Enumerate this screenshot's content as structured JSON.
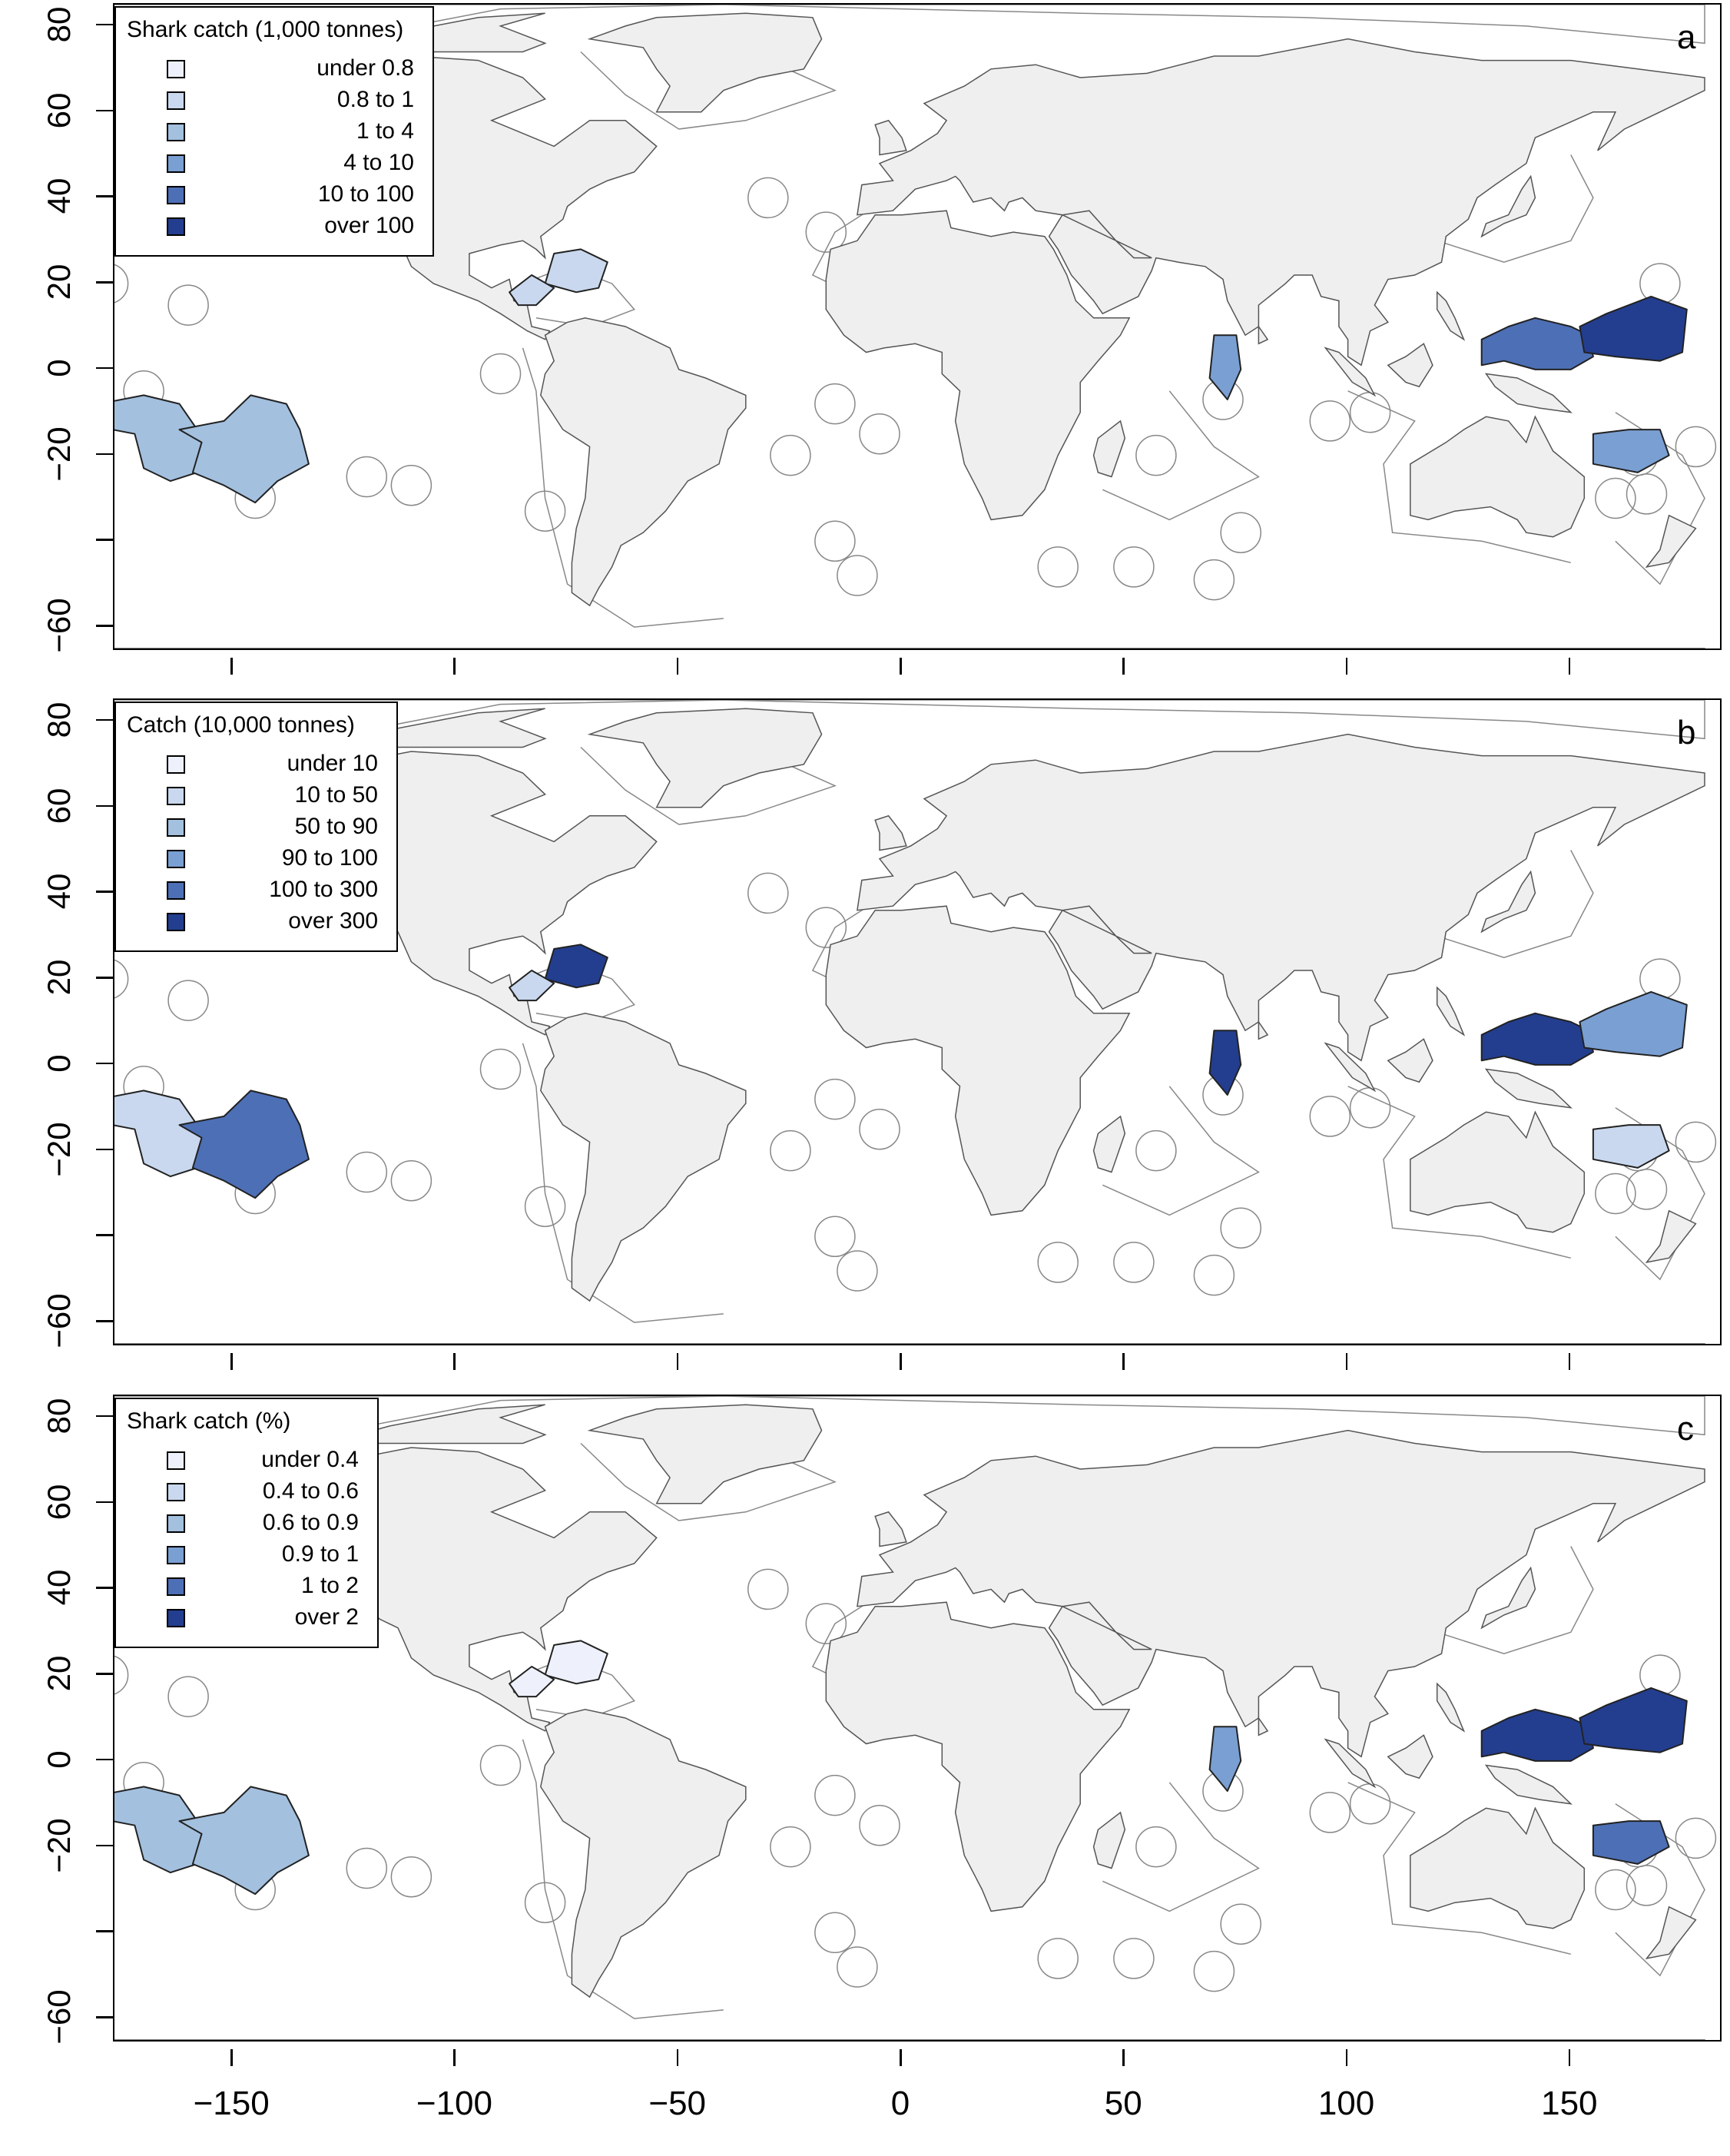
{
  "panels": [
    {
      "letter": "a",
      "legend_title": "Shark catch (1,000 tonnes)",
      "legend": [
        "under 0.8",
        "0.8 to 1",
        "1 to 4",
        "4 to 10",
        "10 to 100",
        "over 100"
      ]
    },
    {
      "letter": "b",
      "legend_title": "Catch (10,000 tonnes)",
      "legend": [
        "under 10",
        "10 to 50",
        "50 to 90",
        "90 to 100",
        "100 to 300",
        "over 300"
      ]
    },
    {
      "letter": "c",
      "legend_title": "Shark catch (%)",
      "legend": [
        "under 0.4",
        "0.4 to 0.6",
        "0.6 to 0.9",
        "0.9 to 1",
        "1 to 2",
        "over 2"
      ]
    }
  ],
  "colors": [
    "#eef1fb",
    "#c9d8ee",
    "#a3c0df",
    "#7a9fd2",
    "#4d6fb5",
    "#233e8f"
  ],
  "land_color": "#efefef",
  "y_axis": {
    "ticks": [
      80,
      60,
      40,
      20,
      0,
      -20,
      -40,
      -60
    ],
    "labels": [
      "80",
      "60",
      "40",
      "20",
      "0",
      "−20",
      "",
      "−60"
    ]
  },
  "x_axis": {
    "ticks": [
      -150,
      -100,
      -50,
      0,
      50,
      100,
      150
    ],
    "labels": [
      "−150",
      "−100",
      "−50",
      "0",
      "50",
      "100",
      "150"
    ]
  },
  "highlight_levels": {
    "panel_a": {
      "south_pacific_west": 2,
      "south_pacific_east": 2,
      "caribbean": 1,
      "gulf": 1,
      "maldives": 3,
      "micronesia_west": 4,
      "micronesia_east": 5,
      "png": 3
    },
    "panel_b": {
      "south_pacific_west": 1,
      "south_pacific_east": 4,
      "caribbean": 5,
      "gulf": 1,
      "maldives": 5,
      "micronesia_west": 5,
      "micronesia_east": 3,
      "png": 1
    },
    "panel_c": {
      "south_pacific_west": 2,
      "south_pacific_east": 2,
      "caribbean": 0,
      "gulf": 0,
      "maldives": 3,
      "micronesia_west": 5,
      "micronesia_east": 5,
      "png": 4
    }
  }
}
